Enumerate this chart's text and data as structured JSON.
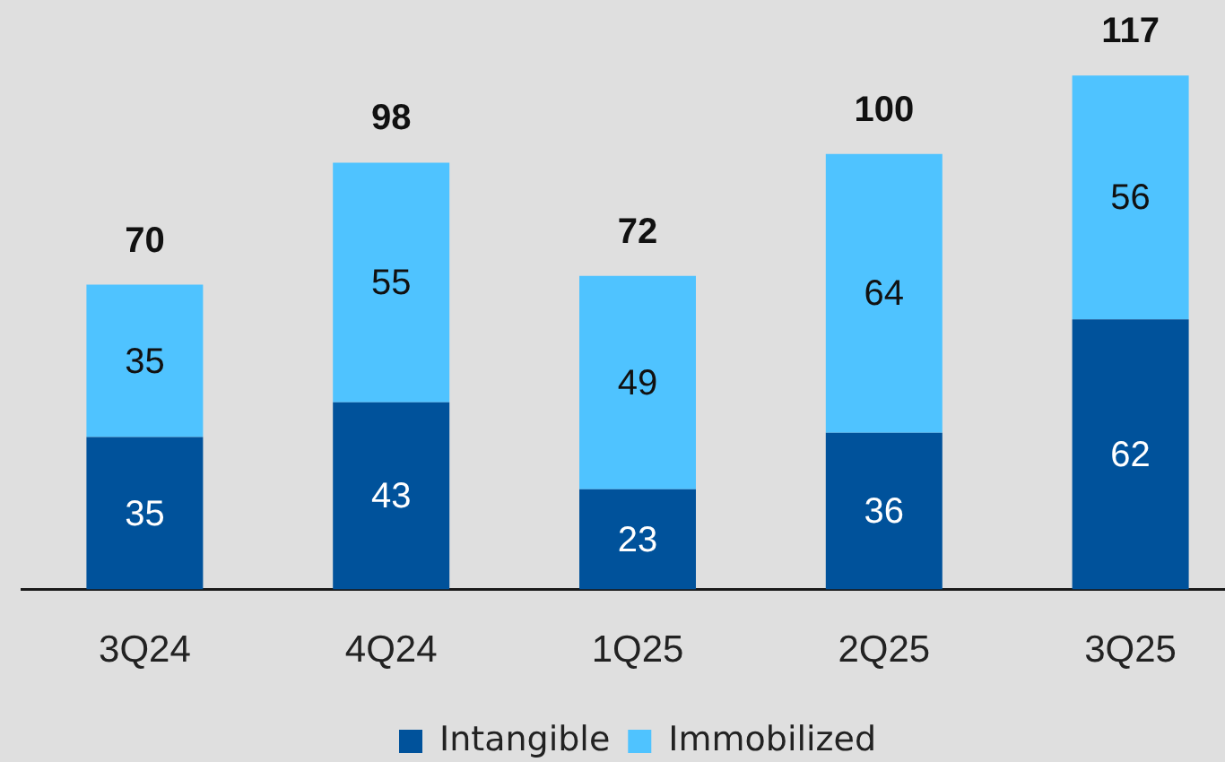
{
  "chart_data": {
    "type": "bar",
    "stacked": true,
    "categories": [
      "3Q24",
      "4Q24",
      "1Q25",
      "2Q25",
      "3Q25"
    ],
    "series": [
      {
        "name": "Intangible",
        "color": "#00529b",
        "values": [
          35,
          43,
          23,
          36,
          62
        ]
      },
      {
        "name": "Immobilized",
        "color": "#4fc3ff",
        "values": [
          35,
          55,
          49,
          64,
          56
        ]
      }
    ],
    "data_labels": true,
    "totals": [
      "70",
      "98",
      "72",
      "100",
      "117"
    ],
    "legend": "bottom",
    "tick_labels": "x"
  }
}
